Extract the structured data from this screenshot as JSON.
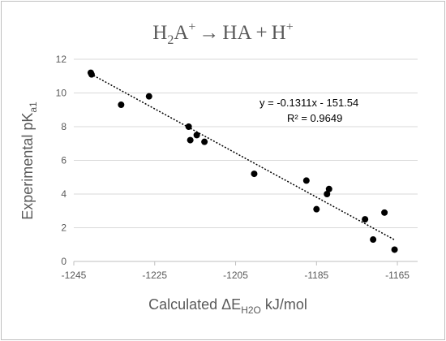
{
  "chart_data": {
    "type": "scatter",
    "title": {
      "lhs_base": "H",
      "lhs_sub": "2",
      "lhs_ion": "A",
      "lhs_sup": "+",
      "arrow": "→",
      "rhs_1": "HA",
      "plus": "+",
      "rhs_2": "H",
      "rhs_2_sup": "+"
    },
    "xlabel": {
      "prefix": "Calculated ΔE",
      "sub": "H2O",
      "suffix": " kJ/mol"
    },
    "ylabel": {
      "prefix": "Experimental pK",
      "sub": "a1"
    },
    "xlim": [
      -1245,
      -1160
    ],
    "ylim": [
      0,
      12
    ],
    "x_ticks": [
      -1245,
      -1225,
      -1205,
      -1185,
      -1165
    ],
    "y_ticks": [
      0,
      2,
      4,
      6,
      8,
      10,
      12
    ],
    "grid": {
      "x": false,
      "y": true
    },
    "points": [
      {
        "x": -1240.8,
        "y": 11.2
      },
      {
        "x": -1240.6,
        "y": 11.1
      },
      {
        "x": -1233.3,
        "y": 9.3
      },
      {
        "x": -1226.4,
        "y": 9.8
      },
      {
        "x": -1216.6,
        "y": 8.0
      },
      {
        "x": -1216.2,
        "y": 7.2
      },
      {
        "x": -1214.6,
        "y": 7.5
      },
      {
        "x": -1212.7,
        "y": 7.1
      },
      {
        "x": -1200.4,
        "y": 5.2
      },
      {
        "x": -1187.5,
        "y": 4.8
      },
      {
        "x": -1185.0,
        "y": 3.1
      },
      {
        "x": -1182.4,
        "y": 4.0
      },
      {
        "x": -1181.9,
        "y": 4.3
      },
      {
        "x": -1173.0,
        "y": 2.5
      },
      {
        "x": -1171.0,
        "y": 1.3
      },
      {
        "x": -1168.2,
        "y": 2.9
      },
      {
        "x": -1165.7,
        "y": 0.7
      }
    ],
    "trendline": {
      "slope": -0.1311,
      "intercept": -151.54,
      "x_range": [
        -1240.8,
        -1165.7
      ],
      "equation": "y = -0.1311x - 151.54",
      "r2": "R² = 0.9649"
    }
  }
}
